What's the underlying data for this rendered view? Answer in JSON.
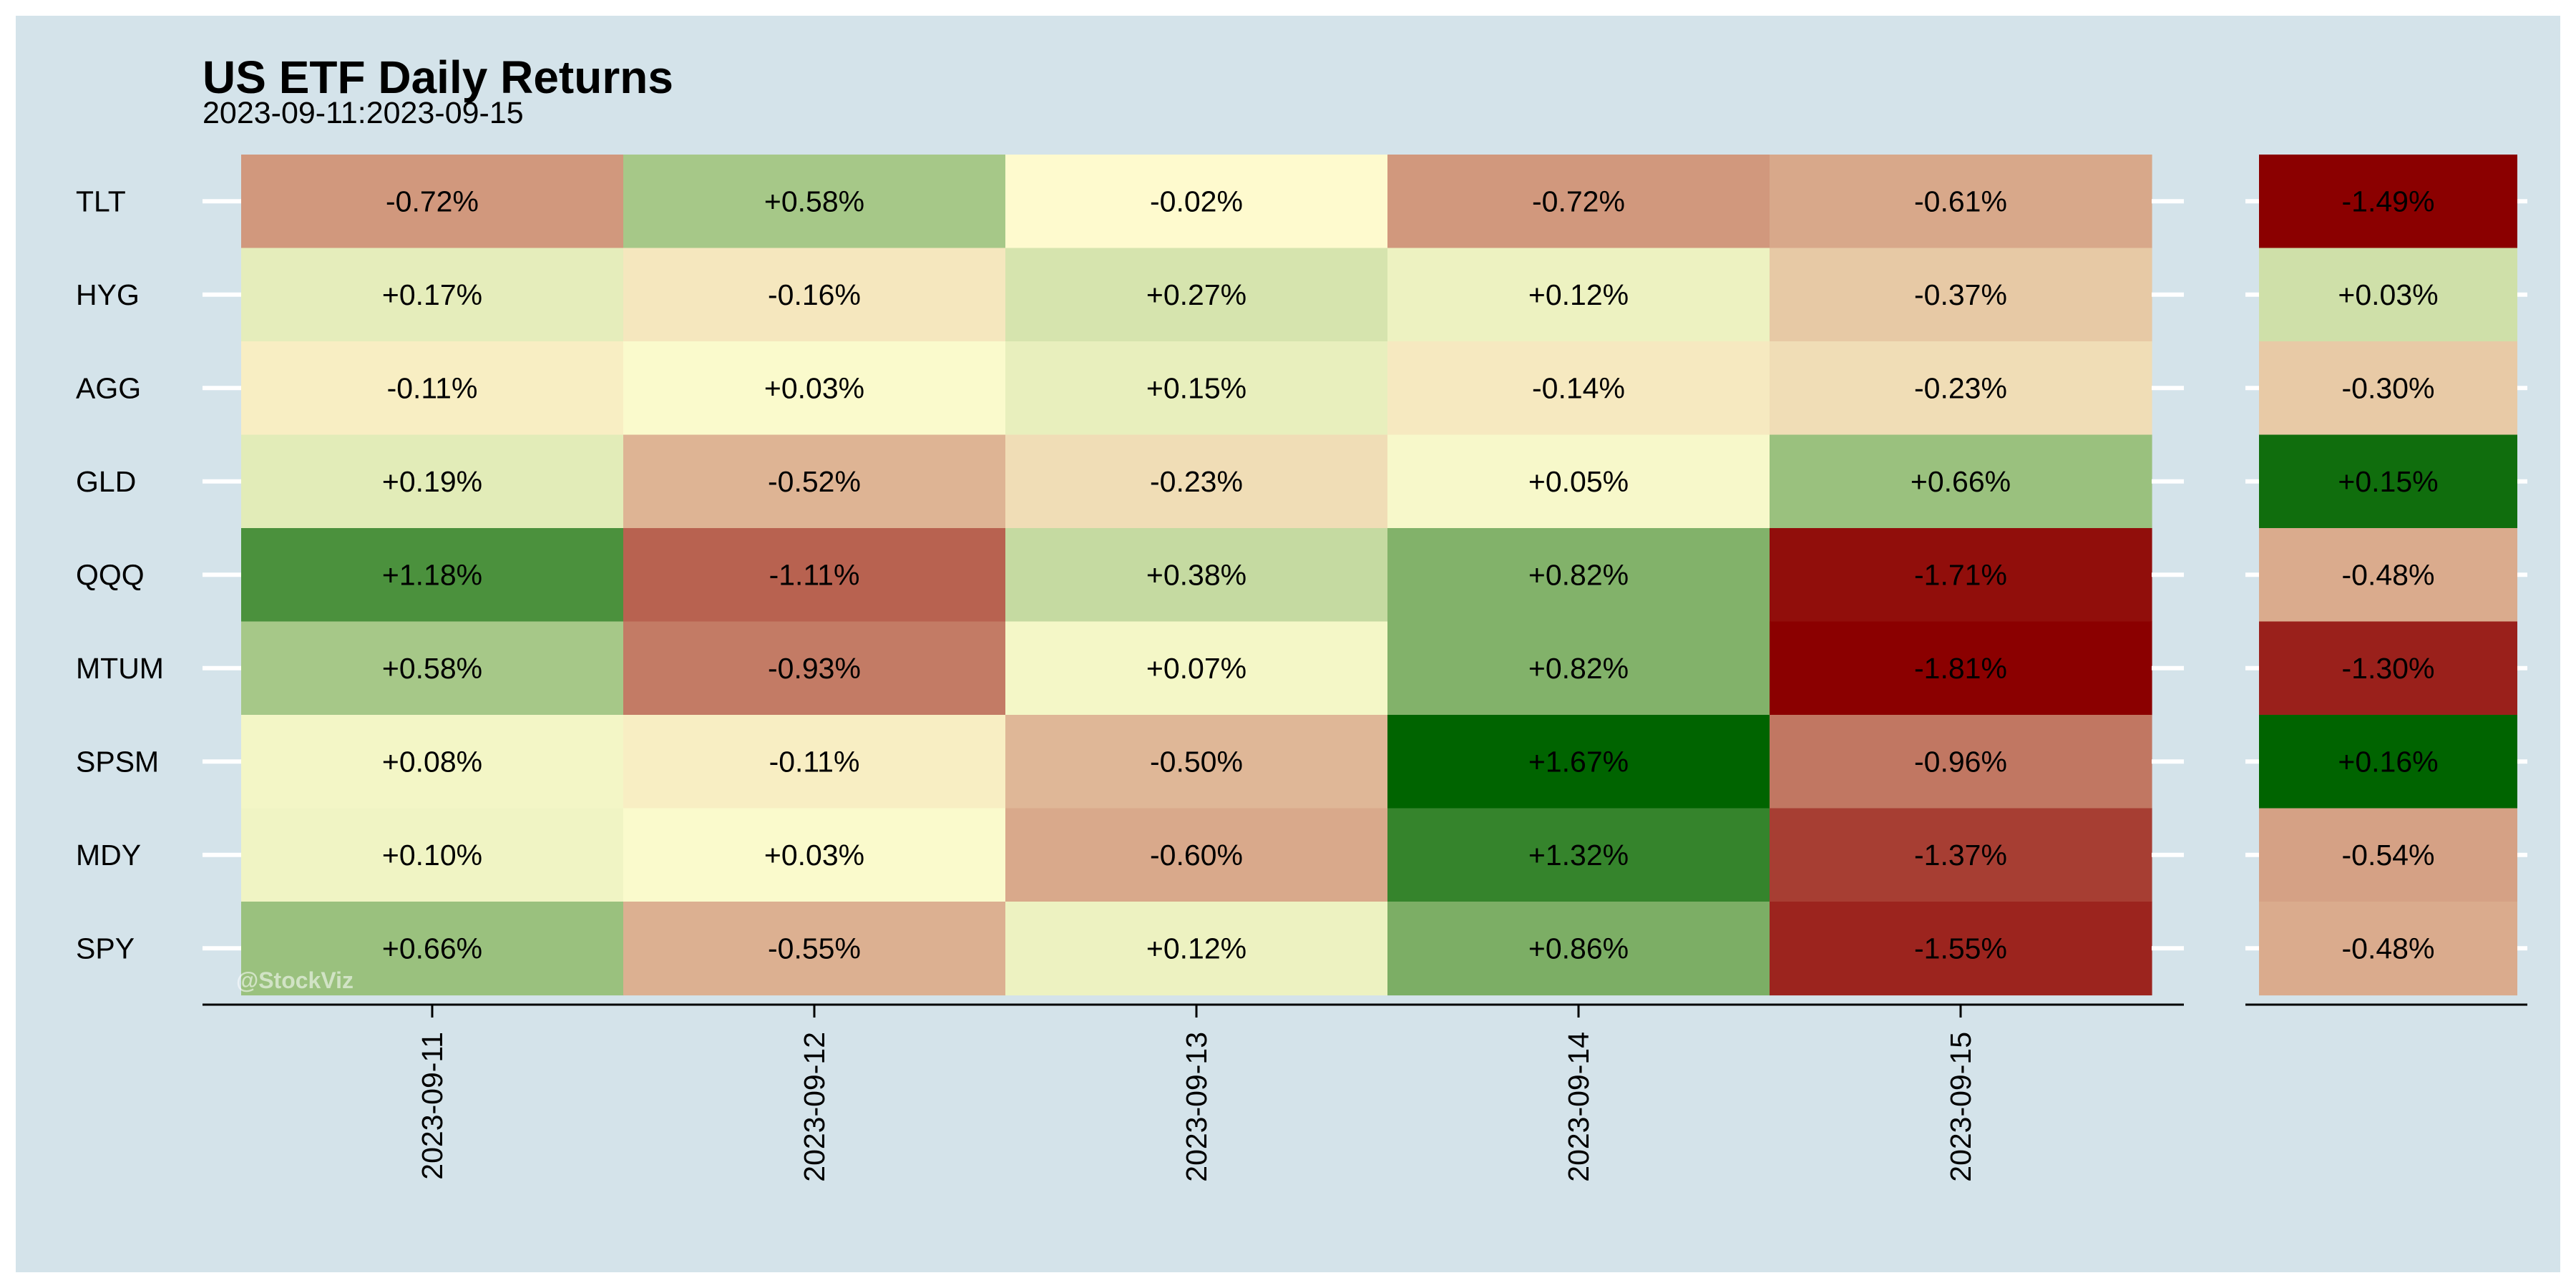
{
  "chart_data": {
    "type": "heatmap",
    "title": "US ETF Daily Returns",
    "subtitle": "2023-09-11:2023-09-15",
    "watermark": "@StockViz",
    "rows": [
      "TLT",
      "HYG",
      "AGG",
      "GLD",
      "QQQ",
      "MTUM",
      "SPSM",
      "MDY",
      "SPY"
    ],
    "columns": [
      "2023-09-11",
      "2023-09-12",
      "2023-09-13",
      "2023-09-14",
      "2023-09-15"
    ],
    "values": [
      [
        -0.72,
        0.58,
        -0.02,
        -0.72,
        -0.61
      ],
      [
        0.17,
        -0.16,
        0.27,
        0.12,
        -0.37
      ],
      [
        -0.11,
        0.03,
        0.15,
        -0.14,
        -0.23
      ],
      [
        0.19,
        -0.52,
        -0.23,
        0.05,
        0.66
      ],
      [
        1.18,
        -1.11,
        0.38,
        0.82,
        -1.71
      ],
      [
        0.58,
        -0.93,
        0.07,
        0.82,
        -1.81
      ],
      [
        0.08,
        -0.11,
        -0.5,
        1.67,
        -0.96
      ],
      [
        0.1,
        0.03,
        -0.6,
        1.32,
        -1.37
      ],
      [
        0.66,
        -0.55,
        0.12,
        0.86,
        -1.55
      ]
    ],
    "labels": [
      [
        "-0.72%",
        "+0.58%",
        "-0.02%",
        "-0.72%",
        "-0.61%"
      ],
      [
        "+0.17%",
        "-0.16%",
        "+0.27%",
        "+0.12%",
        "-0.37%"
      ],
      [
        "-0.11%",
        "+0.03%",
        "+0.15%",
        "-0.14%",
        "-0.23%"
      ],
      [
        "+0.19%",
        "-0.52%",
        "-0.23%",
        "+0.05%",
        "+0.66%"
      ],
      [
        "+1.18%",
        "-1.11%",
        "+0.38%",
        "+0.82%",
        "-1.71%"
      ],
      [
        "+0.58%",
        "-0.93%",
        "+0.07%",
        "+0.82%",
        "-1.81%"
      ],
      [
        "+0.08%",
        "-0.11%",
        "-0.50%",
        "+1.67%",
        "-0.96%"
      ],
      [
        "+0.10%",
        "+0.03%",
        "-0.60%",
        "+1.32%",
        "-1.37%"
      ],
      [
        "+0.66%",
        "-0.55%",
        "+0.12%",
        "+0.86%",
        "-1.55%"
      ]
    ],
    "summary": {
      "values": [
        -1.49,
        0.03,
        -0.3,
        0.15,
        -0.48,
        -1.3,
        0.16,
        -0.54,
        -0.48
      ],
      "labels": [
        "-1.49%",
        "+0.03%",
        "-0.30%",
        "+0.15%",
        "-0.48%",
        "-1.30%",
        "+0.16%",
        "-0.54%",
        "-0.48%"
      ]
    },
    "colors": {
      "panel_background": "#d4e3ea",
      "page_background": "#ffffff",
      "negative": "#8b0000",
      "neutral": "#fffdd0",
      "positive": "#006400",
      "axis": "#000000",
      "tick": "#ffffff"
    }
  }
}
